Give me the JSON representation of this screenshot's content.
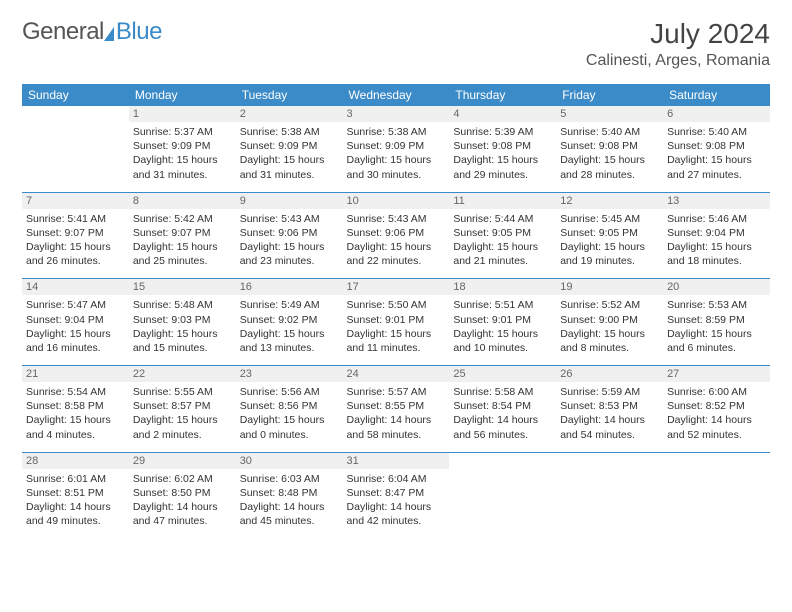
{
  "logo": {
    "text1": "General",
    "text2": "Blue"
  },
  "title": "July 2024",
  "location": "Calinesti, Arges, Romania",
  "colors": {
    "accent": "#3b8bc9",
    "daynum_bg": "#f0f0f0",
    "text": "#333333"
  },
  "weekdays": [
    "Sunday",
    "Monday",
    "Tuesday",
    "Wednesday",
    "Thursday",
    "Friday",
    "Saturday"
  ],
  "weeks": [
    [
      null,
      {
        "n": "1",
        "sr": "5:37 AM",
        "ss": "9:09 PM",
        "dl": "15 hours and 31 minutes."
      },
      {
        "n": "2",
        "sr": "5:38 AM",
        "ss": "9:09 PM",
        "dl": "15 hours and 31 minutes."
      },
      {
        "n": "3",
        "sr": "5:38 AM",
        "ss": "9:09 PM",
        "dl": "15 hours and 30 minutes."
      },
      {
        "n": "4",
        "sr": "5:39 AM",
        "ss": "9:08 PM",
        "dl": "15 hours and 29 minutes."
      },
      {
        "n": "5",
        "sr": "5:40 AM",
        "ss": "9:08 PM",
        "dl": "15 hours and 28 minutes."
      },
      {
        "n": "6",
        "sr": "5:40 AM",
        "ss": "9:08 PM",
        "dl": "15 hours and 27 minutes."
      }
    ],
    [
      {
        "n": "7",
        "sr": "5:41 AM",
        "ss": "9:07 PM",
        "dl": "15 hours and 26 minutes."
      },
      {
        "n": "8",
        "sr": "5:42 AM",
        "ss": "9:07 PM",
        "dl": "15 hours and 25 minutes."
      },
      {
        "n": "9",
        "sr": "5:43 AM",
        "ss": "9:06 PM",
        "dl": "15 hours and 23 minutes."
      },
      {
        "n": "10",
        "sr": "5:43 AM",
        "ss": "9:06 PM",
        "dl": "15 hours and 22 minutes."
      },
      {
        "n": "11",
        "sr": "5:44 AM",
        "ss": "9:05 PM",
        "dl": "15 hours and 21 minutes."
      },
      {
        "n": "12",
        "sr": "5:45 AM",
        "ss": "9:05 PM",
        "dl": "15 hours and 19 minutes."
      },
      {
        "n": "13",
        "sr": "5:46 AM",
        "ss": "9:04 PM",
        "dl": "15 hours and 18 minutes."
      }
    ],
    [
      {
        "n": "14",
        "sr": "5:47 AM",
        "ss": "9:04 PM",
        "dl": "15 hours and 16 minutes."
      },
      {
        "n": "15",
        "sr": "5:48 AM",
        "ss": "9:03 PM",
        "dl": "15 hours and 15 minutes."
      },
      {
        "n": "16",
        "sr": "5:49 AM",
        "ss": "9:02 PM",
        "dl": "15 hours and 13 minutes."
      },
      {
        "n": "17",
        "sr": "5:50 AM",
        "ss": "9:01 PM",
        "dl": "15 hours and 11 minutes."
      },
      {
        "n": "18",
        "sr": "5:51 AM",
        "ss": "9:01 PM",
        "dl": "15 hours and 10 minutes."
      },
      {
        "n": "19",
        "sr": "5:52 AM",
        "ss": "9:00 PM",
        "dl": "15 hours and 8 minutes."
      },
      {
        "n": "20",
        "sr": "5:53 AM",
        "ss": "8:59 PM",
        "dl": "15 hours and 6 minutes."
      }
    ],
    [
      {
        "n": "21",
        "sr": "5:54 AM",
        "ss": "8:58 PM",
        "dl": "15 hours and 4 minutes."
      },
      {
        "n": "22",
        "sr": "5:55 AM",
        "ss": "8:57 PM",
        "dl": "15 hours and 2 minutes."
      },
      {
        "n": "23",
        "sr": "5:56 AM",
        "ss": "8:56 PM",
        "dl": "15 hours and 0 minutes."
      },
      {
        "n": "24",
        "sr": "5:57 AM",
        "ss": "8:55 PM",
        "dl": "14 hours and 58 minutes."
      },
      {
        "n": "25",
        "sr": "5:58 AM",
        "ss": "8:54 PM",
        "dl": "14 hours and 56 minutes."
      },
      {
        "n": "26",
        "sr": "5:59 AM",
        "ss": "8:53 PM",
        "dl": "14 hours and 54 minutes."
      },
      {
        "n": "27",
        "sr": "6:00 AM",
        "ss": "8:52 PM",
        "dl": "14 hours and 52 minutes."
      }
    ],
    [
      {
        "n": "28",
        "sr": "6:01 AM",
        "ss": "8:51 PM",
        "dl": "14 hours and 49 minutes."
      },
      {
        "n": "29",
        "sr": "6:02 AM",
        "ss": "8:50 PM",
        "dl": "14 hours and 47 minutes."
      },
      {
        "n": "30",
        "sr": "6:03 AM",
        "ss": "8:48 PM",
        "dl": "14 hours and 45 minutes."
      },
      {
        "n": "31",
        "sr": "6:04 AM",
        "ss": "8:47 PM",
        "dl": "14 hours and 42 minutes."
      },
      null,
      null,
      null
    ]
  ],
  "labels": {
    "sunrise": "Sunrise: ",
    "sunset": "Sunset: ",
    "daylight": "Daylight: "
  }
}
